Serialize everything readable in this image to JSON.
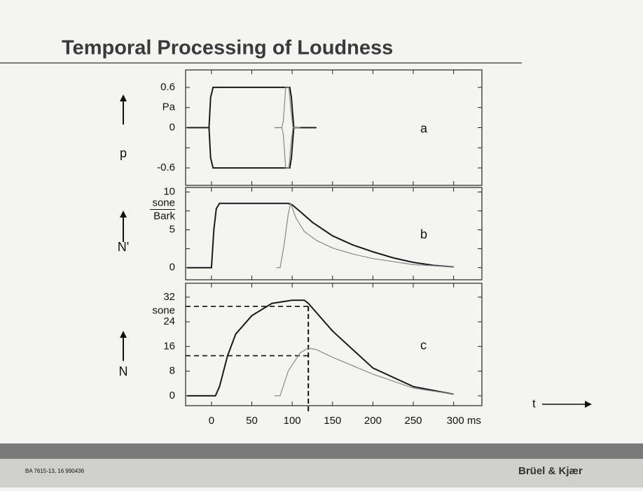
{
  "title": "Temporal Processing of Loudness",
  "x_axis_label": "t",
  "chart_data": [
    {
      "type": "line",
      "panel_label": "a",
      "quantity": "p",
      "y_unit": "Pa",
      "xlim": [
        -32,
        335
      ],
      "ylim": [
        -0.86,
        0.86
      ],
      "xticks": [
        0,
        50,
        100,
        150,
        200,
        250,
        300
      ],
      "yticks": [
        0.6,
        0,
        -0.6
      ],
      "minor_yticks": [
        0.3,
        -0.3
      ],
      "series": [
        {
          "color": "#1a1a1a",
          "x": [
            -30,
            -3,
            -1,
            2,
            97,
            99,
            102,
            130
          ],
          "values": [
            0,
            0,
            0.45,
            0.6,
            0.6,
            0.45,
            0,
            0
          ]
        },
        {
          "color": "#1a1a1a",
          "x": [
            -30,
            -3,
            -1,
            2,
            97,
            99,
            102,
            130
          ],
          "values": [
            0,
            0,
            -0.45,
            -0.6,
            -0.6,
            -0.45,
            0,
            0
          ]
        },
        {
          "color": "#888888",
          "x": [
            78,
            87,
            89,
            92,
            96,
            98,
            101,
            110
          ],
          "values": [
            0,
            0,
            0.1,
            0.6,
            0.6,
            0.3,
            0,
            0
          ]
        },
        {
          "color": "#888888",
          "x": [
            78,
            87,
            89,
            92,
            96,
            98,
            101,
            110
          ],
          "values": [
            0,
            0,
            -0.1,
            -0.6,
            -0.6,
            -0.3,
            0,
            0
          ]
        }
      ]
    },
    {
      "type": "line",
      "panel_label": "b",
      "quantity": "N'",
      "y_unit_num": "sone",
      "y_unit_den": "Bark",
      "xlim": [
        -32,
        335
      ],
      "ylim": [
        -1.6,
        10.6
      ],
      "xticks": [
        0,
        50,
        100,
        150,
        200,
        250,
        300
      ],
      "yticks": [
        10,
        5,
        0
      ],
      "minor_yticks": [
        7.5,
        2.5
      ],
      "series": [
        {
          "color": "#1a1a1a",
          "x": [
            -30,
            0,
            3,
            6,
            10,
            95,
            100,
            110,
            125,
            150,
            175,
            200,
            225,
            250,
            275,
            300
          ],
          "values": [
            0,
            0,
            5,
            7.8,
            8.5,
            8.5,
            8.3,
            7.4,
            6,
            4.2,
            3,
            2.1,
            1.3,
            0.7,
            0.3,
            0.1
          ]
        },
        {
          "color": "#888888",
          "x": [
            80,
            85,
            90,
            95,
            98,
            105,
            115,
            130,
            150,
            175,
            200,
            250,
            300
          ],
          "values": [
            0,
            0,
            3,
            7,
            8.5,
            6.5,
            4.8,
            3.6,
            2.6,
            1.8,
            1.2,
            0.4,
            0.1
          ]
        }
      ]
    },
    {
      "type": "line",
      "panel_label": "c",
      "quantity": "N",
      "y_unit": "sone",
      "xlim": [
        -32,
        335
      ],
      "ylim": [
        -3.2,
        36.5
      ],
      "xticks": [
        0,
        50,
        100,
        150,
        200,
        250,
        {
          "value": 300,
          "label": "300 ms"
        }
      ],
      "yticks": [
        32,
        24,
        16,
        8,
        0
      ],
      "series": [
        {
          "color": "#1a1a1a",
          "x": [
            -30,
            5,
            10,
            20,
            30,
            50,
            75,
            100,
            115,
            120,
            150,
            200,
            250,
            300
          ],
          "values": [
            0,
            0,
            3,
            13,
            20,
            26,
            30,
            31,
            31,
            30,
            21,
            9,
            3,
            0.5
          ]
        },
        {
          "color": "#888888",
          "x": [
            78,
            85,
            95,
            110,
            120,
            130,
            150,
            200,
            250,
            300
          ],
          "values": [
            0,
            0,
            8,
            14,
            15.5,
            15,
            12.5,
            7,
            2.5,
            0.5
          ]
        }
      ],
      "guides": {
        "x": 120,
        "y": [
          29,
          13
        ]
      }
    }
  ],
  "footer": {
    "code": "BA 7615-13, 16  990436",
    "brand": "Brüel & Kjær"
  }
}
